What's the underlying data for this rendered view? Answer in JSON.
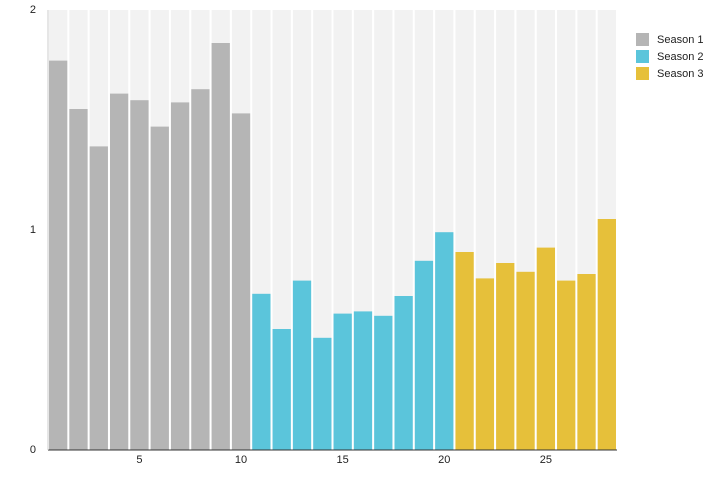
{
  "chart_data": {
    "type": "bar",
    "series": [
      {
        "name": "Season 1",
        "color": "#b5b5b5",
        "x": [
          1,
          2,
          3,
          4,
          5,
          6,
          7,
          8,
          9,
          10
        ],
        "values": [
          1.77,
          1.55,
          1.38,
          1.62,
          1.59,
          1.47,
          1.58,
          1.64,
          1.85,
          1.53
        ]
      },
      {
        "name": "Season 2",
        "color": "#5bc5db",
        "x": [
          11,
          12,
          13,
          14,
          15,
          16,
          17,
          18,
          19,
          20
        ],
        "values": [
          0.71,
          0.55,
          0.77,
          0.51,
          0.62,
          0.63,
          0.61,
          0.7,
          0.86,
          0.99
        ]
      },
      {
        "name": "Season 3",
        "color": "#e6c03a",
        "x": [
          21,
          22,
          23,
          24,
          25,
          26,
          27,
          28
        ],
        "values": [
          0.9,
          0.78,
          0.85,
          0.81,
          0.92,
          0.77,
          0.8,
          1.05
        ]
      }
    ],
    "xlim": [
      0.5,
      28.5
    ],
    "xticks": [
      5,
      10,
      15,
      20,
      25
    ],
    "ylim": [
      0,
      2
    ],
    "yticks": [
      0,
      1,
      2
    ],
    "legend": "top-right"
  }
}
